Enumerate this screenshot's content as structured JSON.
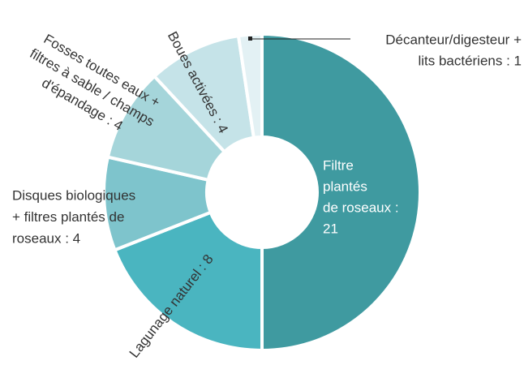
{
  "chart_data": {
    "type": "donut",
    "categories": [
      "Filtre plantés de roseaux",
      "Lagunage naturel",
      "Disques biologiques + filtres plantés de roseaux",
      "Fosses toutes eaux + filtres à sable / champs d'épandage",
      "Boues activées",
      "Décanteur/digesteur + lits bactériens"
    ],
    "values": [
      21,
      8,
      4,
      4,
      4,
      1
    ],
    "value_labels": [
      [
        "Filtre",
        "plantés",
        "de roseaux :",
        "21"
      ],
      [
        "Lagunage naturel : 8"
      ],
      [
        "Disques biologiques",
        "+ filtres plantés de",
        "roseaux : 4"
      ],
      [
        "Fosses toutes eaux +",
        "filtres à sable / champs",
        "d'épandage : 4"
      ],
      [
        "Boues activées : 4"
      ],
      [
        "Décanteur/digesteur +",
        "lits bactériens : 1"
      ]
    ],
    "colors": [
      "#3f9aa0",
      "#4ab5c0",
      "#7ec4cc",
      "#a5d5da",
      "#c5e3e8",
      "#e3f1f4"
    ]
  }
}
